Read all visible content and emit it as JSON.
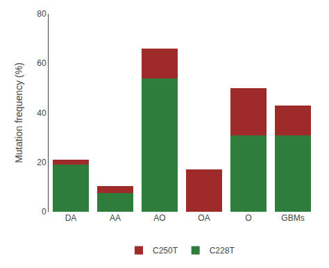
{
  "chart_data": {
    "type": "bar",
    "stacked": true,
    "categories": [
      "DA",
      "AA",
      "AO",
      "OA",
      "O",
      "GBMs"
    ],
    "series": [
      {
        "name": "C228T",
        "color": "#2e7d3c",
        "values": [
          19,
          7.5,
          54,
          0,
          31,
          31
        ]
      },
      {
        "name": "C250T",
        "color": "#9e2a2a",
        "values": [
          2,
          3,
          12,
          17,
          19,
          12
        ]
      }
    ],
    "ylabel": "Mutation frequency (%)",
    "ylim": [
      0,
      80
    ],
    "yticks": [
      0,
      20,
      40,
      60,
      80
    ],
    "grid": false,
    "legend": "bottom"
  }
}
